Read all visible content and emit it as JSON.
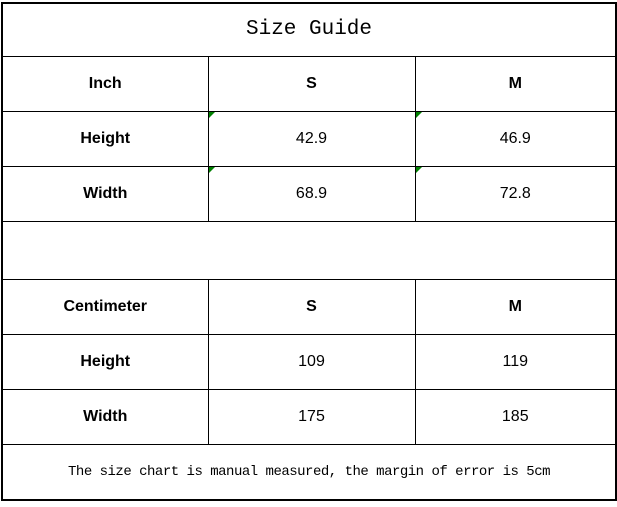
{
  "title": "Size Guide",
  "footer": "The size chart is manual measured, the margin of error is 5cm",
  "colors": {
    "background": "#ffffff",
    "border": "#000000",
    "text": "#000000",
    "flag_green": "#008000"
  },
  "chart_data": [
    {
      "type": "table",
      "title": "Size Guide",
      "unit": "Inch",
      "columns": [
        "Inch",
        "S",
        "M"
      ],
      "rows": [
        [
          "Height",
          "42.9",
          "46.9"
        ],
        [
          "Width",
          "68.9",
          "72.8"
        ]
      ],
      "flagged_value_cells": "green stored-as-text corner triangles on all four S/M value cells"
    },
    {
      "type": "table",
      "unit": "Centimeter",
      "columns": [
        "Centimeter",
        "S",
        "M"
      ],
      "rows": [
        [
          "Height",
          "109",
          "119"
        ],
        [
          "Width",
          "175",
          "185"
        ]
      ],
      "flagged_value_cells": "none"
    }
  ]
}
